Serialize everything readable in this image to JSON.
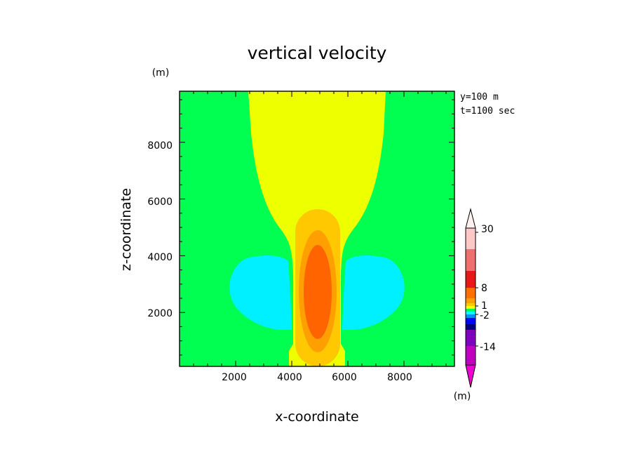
{
  "chart_data": {
    "type": "heatmap",
    "title": "vertical velocity",
    "xlabel": "x-coordinate",
    "ylabel": "z-coordinate",
    "y_unit": "(m)",
    "colorbar_unit": "(m)",
    "annotations": [
      "y=100 m",
      "t=1100 sec"
    ],
    "xlim": [
      0,
      9800
    ],
    "ylim": [
      100,
      9800
    ],
    "xticks": [
      2000,
      4000,
      6000,
      8000
    ],
    "yticks": [
      2000,
      4000,
      6000,
      8000
    ],
    "colorbar_ticks": [
      "30",
      "8",
      "1",
      "-2",
      "-14"
    ],
    "colorbar_colors": [
      "#ffc8c8",
      "#f07070",
      "#e81818",
      "#ff7000",
      "#ffa000",
      "#ffc800",
      "#ffff00",
      "#00ff50",
      "#00ffff",
      "#0090ff",
      "#0000ff",
      "#000080",
      "#8000c0",
      "#c000c0",
      "#f000d0"
    ],
    "regions": [
      {
        "name": "background",
        "color": "#00ff50"
      },
      {
        "name": "upper updraft",
        "color": "#eeff00"
      },
      {
        "name": "left downdraft",
        "color": "#00f0ff"
      },
      {
        "name": "right downdraft",
        "color": "#00f0ff"
      },
      {
        "name": "core outer",
        "color": "#ffc800"
      },
      {
        "name": "core middle",
        "color": "#ffa000"
      },
      {
        "name": "core inner",
        "color": "#ff6400"
      }
    ]
  }
}
